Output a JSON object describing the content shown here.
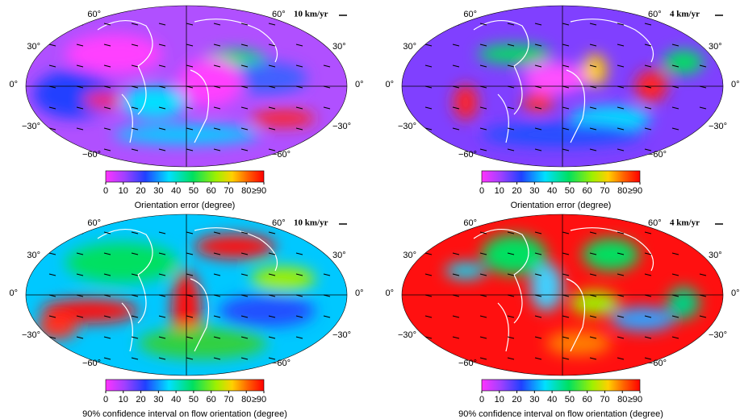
{
  "panels": [
    {
      "scale_label": "10 km/yr",
      "lat_labels": [
        "60°",
        "30°",
        "0°",
        "−30°",
        "−60°"
      ],
      "colorbar": {
        "ticks": [
          0,
          10,
          20,
          30,
          40,
          50,
          60,
          70,
          80,
          {
            "value": 90,
            "label": "≥90"
          }
        ],
        "label": "Orientation error (degree)"
      }
    },
    {
      "scale_label": "4 km/yr",
      "lat_labels": [
        "60°",
        "30°",
        "0°",
        "−30°",
        "−60°"
      ],
      "colorbar": {
        "ticks": [
          0,
          10,
          20,
          30,
          40,
          50,
          60,
          70,
          80,
          {
            "value": 90,
            "label": "≥90"
          }
        ],
        "label": "Orientation error (degree)"
      }
    },
    {
      "scale_label": "10 km/yr",
      "lat_labels": [
        "60°",
        "30°",
        "0°",
        "−30°",
        "−60°"
      ],
      "colorbar": {
        "ticks": [
          0,
          10,
          20,
          30,
          40,
          50,
          60,
          70,
          80,
          {
            "value": 90,
            "label": "≥90"
          }
        ],
        "label": "90% confidence interval on flow orientation (degree)"
      }
    },
    {
      "scale_label": "4 km/yr",
      "lat_labels": [
        "60°",
        "30°",
        "0°",
        "−30°",
        "−60°"
      ],
      "colorbar": {
        "ticks": [
          0,
          10,
          20,
          30,
          40,
          50,
          60,
          70,
          80,
          {
            "value": 90,
            "label": "≥90"
          }
        ],
        "label": "90% confidence interval on flow orientation (degree)"
      }
    }
  ]
}
